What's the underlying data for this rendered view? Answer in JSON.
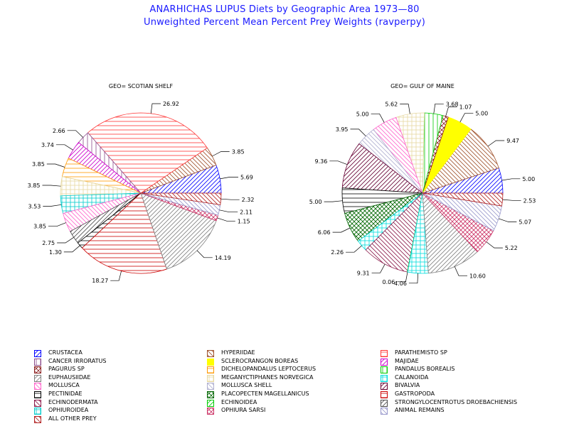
{
  "title": "ANARHICHAS LUPUS Diets by Geographic Area 1973—80",
  "subtitle": "Unweighted Percent Mean Percent Prey  Weights (ravperpy)",
  "chart_data": [
    {
      "type": "pie",
      "title": "GEO= SCOTIAN SHELF",
      "slices": [
        {
          "category": "CRUSTACEA",
          "value": 5.69,
          "label": "5.69"
        },
        {
          "category": "HYPERIIDAE",
          "value": 3.85,
          "label": "3.85"
        },
        {
          "category": "PARATHEMISTO SP",
          "value": 26.92,
          "label": "26.92"
        },
        {
          "category": "CANCER IRRORATUS",
          "value": 2.66,
          "label": "2.66"
        },
        {
          "category": "MAJIDAE",
          "value": 3.74,
          "label": "3.74"
        },
        {
          "category": "DICHELOPANDALUS LEPTOCERUS",
          "value": 3.85,
          "label": "3.85"
        },
        {
          "category": "MEGANYCTIPHANES NORVEGICA",
          "value": 3.85,
          "label": "3.85"
        },
        {
          "category": "OPHIUROIDEA",
          "value": 3.53,
          "label": "3.53"
        },
        {
          "category": "MOLLUSCA",
          "value": 3.85,
          "label": "3.85"
        },
        {
          "category": "STRONGYLOCENTROTUS DROEBACHIENSIS",
          "value": 2.75,
          "label": "2.75"
        },
        {
          "category": "PECTINIDAE",
          "value": 1.3,
          "label": "1.30"
        },
        {
          "category": "GASTROPODA",
          "value": 18.27,
          "label": "18.27"
        },
        {
          "category": "EUPHAUSIIDAE",
          "value": 14.19,
          "label": "14.19"
        },
        {
          "category": "OPHIURA SARSI",
          "value": 1.15,
          "label": "1.15"
        },
        {
          "category": "ANIMAL REMAINS",
          "value": 2.11,
          "label": "2.11"
        },
        {
          "category": "ALL OTHER PREY",
          "value": 2.32,
          "label": "2.32"
        }
      ]
    },
    {
      "type": "pie",
      "title": "GEO= GULF OF MAINE",
      "slices": [
        {
          "category": "CRUSTACEA",
          "value": 5.0,
          "label": "5.00"
        },
        {
          "category": "HYPERIIDAE",
          "value": 9.47,
          "label": "9.47"
        },
        {
          "category": "SCLEROCRANGON BOREAS",
          "value": 5.0,
          "label": "5.00"
        },
        {
          "category": "PAGURUS SP",
          "value": 1.07,
          "label": "1.07"
        },
        {
          "category": "PANDALUS BOREALIS",
          "value": 3.68,
          "label": "3.68"
        },
        {
          "category": "MEGANYCTIPHANES NORVEGICA",
          "value": 5.62,
          "label": "5.62"
        },
        {
          "category": "MOLLUSCA",
          "value": 5.0,
          "label": "5.00"
        },
        {
          "category": "MOLLUSCA SHELL",
          "value": 3.95,
          "label": "3.95"
        },
        {
          "category": "BIVALVIA",
          "value": 9.36,
          "label": "9.36"
        },
        {
          "category": "PECTINIDAE",
          "value": 5.0,
          "label": "5.00"
        },
        {
          "category": "PLACOPECTEN MAGELLANICUS",
          "value": 6.06,
          "label": "6.06"
        },
        {
          "category": "CALANOIDA",
          "value": 2.26,
          "label": "2.26"
        },
        {
          "category": "ECHINODERMATA",
          "value": 9.31,
          "label": "9.31"
        },
        {
          "category": "ECHINOIDEA",
          "value": 0.06,
          "label": "0.06"
        },
        {
          "category": "CALANOIDA",
          "value": 4.06,
          "label": "4.06"
        },
        {
          "category": "EUPHAUSIIDAE",
          "value": 10.6,
          "label": "10.60"
        },
        {
          "category": "OPHIURA SARSI",
          "value": 5.22,
          "label": "5.22"
        },
        {
          "category": "ANIMAL REMAINS",
          "value": 5.07,
          "label": "5.07"
        },
        {
          "category": "ALL OTHER PREY",
          "value": 2.53,
          "label": "2.53"
        }
      ]
    }
  ],
  "legend": [
    {
      "label": "CRUSTACEA",
      "color": "#0000ff",
      "pattern": "diag-right"
    },
    {
      "label": "CANCER IRRORATUS",
      "color": "#8b4a8b",
      "pattern": "vertical"
    },
    {
      "label": "PAGURUS SP",
      "color": "#8b2020",
      "pattern": "crosshatch-diag"
    },
    {
      "label": "EUPHAUSIIDAE",
      "color": "#808080",
      "pattern": "diag-right"
    },
    {
      "label": "MOLLUSCA",
      "color": "#ff66cc",
      "pattern": "diag-left"
    },
    {
      "label": "PECTINIDAE",
      "color": "#000000",
      "pattern": "horizontal"
    },
    {
      "label": "ECHINODERMATA",
      "color": "#8b1a4a",
      "pattern": "diag-left"
    },
    {
      "label": "OPHIUROIDEA",
      "color": "#00cccc",
      "pattern": "crosshatch"
    },
    {
      "label": "ALL OTHER PREY",
      "color": "#b22222",
      "pattern": "diag-left"
    },
    {
      "label": "HYPERIIDAE",
      "color": "#a0522d",
      "pattern": "diag-left"
    },
    {
      "label": "SCLEROCRANGON BOREAS",
      "color": "#ffff00",
      "pattern": "solid"
    },
    {
      "label": "DICHELOPANDALUS LEPTOCERUS",
      "color": "#ff9900",
      "pattern": "horizontal"
    },
    {
      "label": "MEGANYCTIPHANES NORVEGICA",
      "color": "#e6d8a0",
      "pattern": "crosshatch"
    },
    {
      "label": "MOLLUSCA SHELL",
      "color": "#b0b0d0",
      "pattern": "diag-left"
    },
    {
      "label": "PLACOPECTEN MAGELLANICUS",
      "color": "#006600",
      "pattern": "crosshatch-diag"
    },
    {
      "label": "ECHINOIDEA",
      "color": "#00cc00",
      "pattern": "diag-right"
    },
    {
      "label": "OPHIURA SARSI",
      "color": "#cc3366",
      "pattern": "crosshatch-diag"
    },
    {
      "label": "PARATHEMISTO SP",
      "color": "#ff3333",
      "pattern": "horizontal"
    },
    {
      "label": "MAJIDAE",
      "color": "#cc00cc",
      "pattern": "diag-right"
    },
    {
      "label": "PANDALUS BOREALIS",
      "color": "#00cc00",
      "pattern": "vertical"
    },
    {
      "label": "CALANOIDA",
      "color": "#00dddd",
      "pattern": "crosshatch"
    },
    {
      "label": "BIVALVIA",
      "color": "#660033",
      "pattern": "diag-right"
    },
    {
      "label": "GASTROPODA",
      "color": "#cc0000",
      "pattern": "horizontal"
    },
    {
      "label": "STRONGYLOCENTROTUS DROEBACHIENSIS",
      "color": "#4d4d4d",
      "pattern": "diag-right"
    },
    {
      "label": "ANIMAL REMAINS",
      "color": "#9999cc",
      "pattern": "diag-left"
    }
  ]
}
